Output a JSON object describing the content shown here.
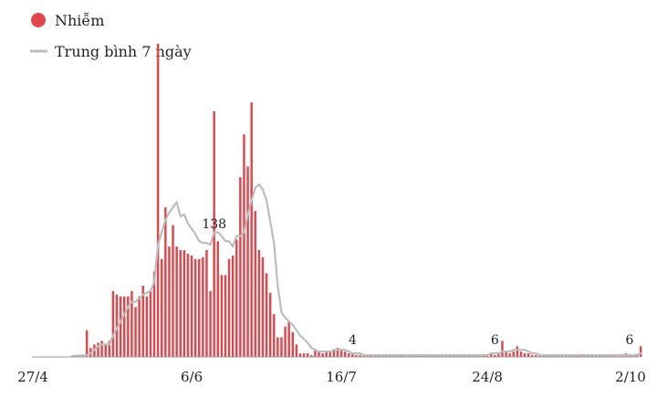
{
  "legend": {
    "cases_label": "Nhiễm",
    "avg_label": "Trung bình 7 ngày"
  },
  "colors": {
    "bar": "#e0474c",
    "avg_line": "#bdbdbd",
    "axis": "#999999",
    "text": "#222222"
  },
  "chart_data": {
    "type": "bar",
    "x_axis": {
      "type": "date",
      "start": "2021-04-27",
      "end": "2021-10-02"
    },
    "ticks": [
      {
        "label": "27/4",
        "date": "2021-04-27"
      },
      {
        "label": "6/6",
        "date": "2021-06-06"
      },
      {
        "label": "16/7",
        "date": "2021-07-16"
      },
      {
        "label": "24/8",
        "date": "2021-08-24"
      },
      {
        "label": "2/10",
        "date": "2021-10-02"
      }
    ],
    "ylim": [
      0,
      180
    ],
    "series": [
      {
        "name": "Nhiễm",
        "kind": "bar",
        "start_date": "2021-05-09",
        "values": [
          15,
          5,
          7,
          8,
          9,
          7,
          9,
          37,
          35,
          34,
          34,
          34,
          37,
          28,
          34,
          40,
          34,
          37,
          48,
          176,
          55,
          84,
          62,
          74,
          62,
          60,
          60,
          58,
          57,
          55,
          55,
          56,
          60,
          37,
          138,
          65,
          46,
          46,
          55,
          57,
          66,
          101,
          125,
          107,
          143,
          82,
          60,
          56,
          47,
          36,
          24,
          11,
          11,
          17,
          20,
          14,
          7,
          2,
          2,
          2,
          1,
          4,
          3,
          2,
          3,
          3,
          4,
          5,
          4,
          3,
          2,
          2,
          1,
          1,
          1,
          1,
          1,
          1,
          1,
          1,
          1,
          1,
          1,
          1,
          1,
          1,
          1,
          1,
          1,
          1,
          1,
          1,
          1,
          1,
          1,
          1,
          1,
          1,
          1,
          1,
          1,
          1,
          1,
          1,
          1,
          1,
          1,
          1,
          2,
          1,
          2,
          9,
          3,
          2,
          3,
          6,
          3,
          2,
          2,
          1,
          1,
          1,
          1,
          1,
          1,
          1,
          1,
          1,
          1,
          1,
          1,
          1,
          1,
          1,
          1,
          1,
          1,
          1,
          1,
          1,
          1,
          1,
          1,
          1,
          2,
          1,
          1,
          1,
          6
        ]
      },
      {
        "name": "Trung bình 7 ngày",
        "kind": "line",
        "start_date": "2021-05-09",
        "values": [
          1,
          2,
          4,
          6,
          7,
          7,
          7,
          12,
          16,
          20,
          24,
          28,
          31,
          31,
          33,
          35,
          36,
          37,
          42,
          63,
          70,
          77,
          81,
          84,
          87,
          79,
          80,
          75,
          72,
          69,
          65,
          64,
          64,
          63,
          70,
          70,
          68,
          65,
          65,
          62,
          68,
          68,
          70,
          80,
          88,
          95,
          97,
          94,
          88,
          76,
          64,
          40,
          25,
          22,
          20,
          18,
          15,
          12,
          10,
          8,
          5,
          4,
          3,
          3,
          3,
          3,
          4,
          4,
          4,
          4,
          3,
          2,
          2,
          2,
          1,
          1,
          1,
          1,
          1,
          1,
          1,
          1,
          1,
          1,
          1,
          1,
          1,
          1,
          1,
          1,
          1,
          1,
          1,
          1,
          1,
          1,
          1,
          1,
          1,
          1,
          1,
          1,
          1,
          1,
          1,
          1,
          1,
          1,
          2,
          2,
          2,
          3,
          3,
          3,
          4,
          4,
          4,
          4,
          3,
          2,
          2,
          1,
          1,
          1,
          1,
          1,
          1,
          1,
          1,
          1,
          1,
          1,
          1,
          1,
          1,
          1,
          1,
          1,
          1,
          1,
          1,
          1,
          1,
          1,
          1,
          1,
          1,
          1,
          2
        ]
      }
    ],
    "annotations": [
      {
        "label": "138",
        "date": "2021-06-12"
      },
      {
        "label": "4",
        "date": "2021-07-19"
      },
      {
        "label": "6",
        "date": "2021-08-26"
      },
      {
        "label": "6",
        "date": "2021-10-02"
      }
    ]
  }
}
